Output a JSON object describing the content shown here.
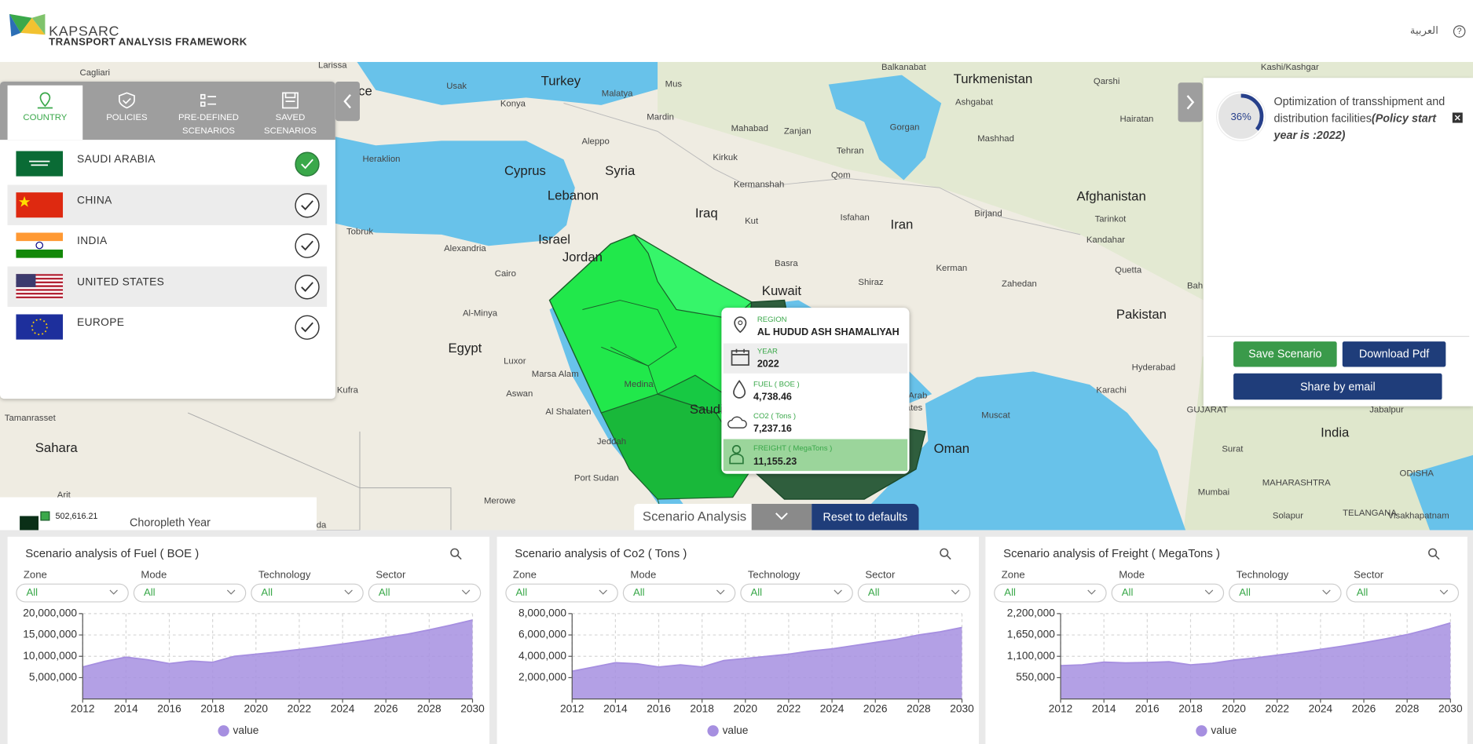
{
  "header": {
    "brand": "KAPSARC",
    "subtitle": "TRANSPORT ANALYSIS FRAMEWORK",
    "language": "العربية",
    "help": "?"
  },
  "tabs": [
    [
      "COUNTRY"
    ],
    [
      "POLICIES"
    ],
    [
      "PRE-DEFINED",
      "SCENARIOS"
    ],
    [
      "SAVED",
      "SCENARIOS"
    ]
  ],
  "countries": [
    {
      "name": "SAUDI ARABIA",
      "selected": true
    },
    {
      "name": "CHINA",
      "selected": false
    },
    {
      "name": "INDIA",
      "selected": false
    },
    {
      "name": "UNITED STATES",
      "selected": false
    },
    {
      "name": "EUROPE",
      "selected": false
    }
  ],
  "tooltip": {
    "region_label": "REGION",
    "region": "AL HUDUD ASH SHAMALIYAH",
    "year_label": "YEAR",
    "year": "2022",
    "fuel_label": "FUEL ( BOE )",
    "fuel": "4,738.46",
    "co2_label": "CO2 ( Tons )",
    "co2": "7,237.16",
    "freight_label": "FREIGHT ( MegaTons )",
    "freight": "11,155.23"
  },
  "right_panel": {
    "progress": {
      "value": 36,
      "label": "36%"
    },
    "policy": "Optimization of transshipment and distribution facilities",
    "policy_note": "(Policy start year is :2022)",
    "save": "Save Scenario",
    "download": "Download Pdf",
    "share": "Share by email"
  },
  "map_legend": {
    "max": "502,616.21",
    "title": "Choropleth Year"
  },
  "scenario_bar": {
    "label": "Scenario Analysis",
    "reset": "Reset to defaults"
  },
  "map": {
    "countries": [
      "Turkey",
      "Syria",
      "Iraq",
      "Iran",
      "Egypt",
      "Jordan",
      "Israel",
      "Lebanon",
      "Kuwait",
      "Oman",
      "Afghanistan",
      "Pakistan",
      "India",
      "Turkmenistan",
      "Sahara",
      "Cyprus",
      "Saudi",
      "ece"
    ],
    "cities": [
      "Cagliari",
      "Larissa",
      "Usak",
      "Konya",
      "Malatya",
      "Mus",
      "Mardin",
      "Aleppo",
      "Heraklion",
      "Tobruk",
      "Alexandria",
      "Cairo",
      "Al-Minya",
      "Luxor",
      "Aswan",
      "Marsa Alam",
      "Al Shalaten",
      "Kufra",
      "Tamanrasset",
      "Port Sudan",
      "Merowe",
      "Jeddah",
      "Medina",
      "Kirkuk",
      "Kermanshah",
      "Kut",
      "Basra",
      "Mahabad",
      "Zanjan",
      "Tehran",
      "Qom",
      "Isfahan",
      "Shiraz",
      "Gorgan",
      "Ashgabat",
      "Mashhad",
      "Birjand",
      "Kerman",
      "Zahedan",
      "Kandahar",
      "Quetta",
      "Tarinkot",
      "Qarshi",
      "Hairatan",
      "Kashi/Kashgar",
      "Balkanabat",
      "Muscat",
      "Karachi",
      "Hyderabad",
      "Surat",
      "Mumbai",
      "Jabalpur",
      "GUJARAT",
      "MAHARASHTRA",
      "TELANGANA",
      "ODISHA",
      "Solapur",
      "Visakhapatnam",
      "Arab",
      "ates",
      "Bah",
      "Arit",
      "ida"
    ]
  },
  "chart_data": [
    {
      "type": "area",
      "title": "Scenario analysis of Fuel ( BOE )",
      "filters": [
        {
          "label": "Zone",
          "value": "All"
        },
        {
          "label": "Mode",
          "value": "All"
        },
        {
          "label": "Technology",
          "value": "All"
        },
        {
          "label": "Sector",
          "value": "All"
        }
      ],
      "x": [
        2012,
        2013,
        2014,
        2015,
        2016,
        2017,
        2018,
        2019,
        2020,
        2021,
        2022,
        2023,
        2024,
        2025,
        2026,
        2027,
        2028,
        2029,
        2030
      ],
      "series": [
        {
          "name": "value",
          "color": "#a68fe0",
          "values": [
            7500000,
            8800000,
            9800000,
            9200000,
            8300000,
            8900000,
            8600000,
            10000000,
            10500000,
            11000000,
            11600000,
            12200000,
            12900000,
            13600000,
            14400000,
            15200000,
            16200000,
            17300000,
            18500000
          ]
        }
      ],
      "xlim": [
        2012,
        2030
      ],
      "xticks": [
        2012,
        2014,
        2016,
        2018,
        2020,
        2022,
        2024,
        2026,
        2028,
        2030
      ],
      "ylim": [
        0,
        20000000
      ],
      "yticks": [
        {
          "value": 5000000,
          "label": "5,000,000"
        },
        {
          "value": 10000000,
          "label": "10,000,000"
        },
        {
          "value": 15000000,
          "label": "15,000,000"
        },
        {
          "value": 20000000,
          "label": "20,000,000"
        }
      ],
      "grid": true
    },
    {
      "type": "area",
      "title": "Scenario analysis of Co2 ( Tons )",
      "filters": [
        {
          "label": "Zone",
          "value": "All"
        },
        {
          "label": "Mode",
          "value": "All"
        },
        {
          "label": "Technology",
          "value": "All"
        },
        {
          "label": "Sector",
          "value": "All"
        }
      ],
      "x": [
        2012,
        2013,
        2014,
        2015,
        2016,
        2017,
        2018,
        2019,
        2020,
        2021,
        2022,
        2023,
        2024,
        2025,
        2026,
        2027,
        2028,
        2029,
        2030
      ],
      "series": [
        {
          "name": "value",
          "color": "#a68fe0",
          "values": [
            2600000,
            3000000,
            3400000,
            3300000,
            3000000,
            3200000,
            3000000,
            3600000,
            3800000,
            4000000,
            4200000,
            4500000,
            4700000,
            5000000,
            5300000,
            5600000,
            6000000,
            6300000,
            6700000
          ]
        }
      ],
      "xlim": [
        2012,
        2030
      ],
      "xticks": [
        2012,
        2014,
        2016,
        2018,
        2020,
        2022,
        2024,
        2026,
        2028,
        2030
      ],
      "ylim": [
        0,
        8000000
      ],
      "yticks": [
        {
          "value": 2000000,
          "label": "2,000,000"
        },
        {
          "value": 4000000,
          "label": "4,000,000"
        },
        {
          "value": 6000000,
          "label": "6,000,000"
        },
        {
          "value": 8000000,
          "label": "8,000,000"
        }
      ],
      "grid": true
    },
    {
      "type": "area",
      "title": "Scenario analysis of Freight ( MegaTons )",
      "filters": [
        {
          "label": "Zone",
          "value": "All"
        },
        {
          "label": "Mode",
          "value": "All"
        },
        {
          "label": "Technology",
          "value": "All"
        },
        {
          "label": "Sector",
          "value": "All"
        }
      ],
      "x": [
        2012,
        2013,
        2014,
        2015,
        2016,
        2017,
        2018,
        2019,
        2020,
        2021,
        2022,
        2023,
        2024,
        2025,
        2026,
        2027,
        2028,
        2029,
        2030
      ],
      "series": [
        {
          "name": "value",
          "color": "#a68fe0",
          "values": [
            860000,
            880000,
            950000,
            930000,
            940000,
            960000,
            880000,
            920000,
            1000000,
            1060000,
            1130000,
            1200000,
            1280000,
            1360000,
            1450000,
            1550000,
            1660000,
            1800000,
            1960000
          ]
        }
      ],
      "xlim": [
        2012,
        2030
      ],
      "xticks": [
        2012,
        2014,
        2016,
        2018,
        2020,
        2022,
        2024,
        2026,
        2028,
        2030
      ],
      "ylim": [
        0,
        2200000
      ],
      "yticks": [
        {
          "value": 550000,
          "label": "550,000"
        },
        {
          "value": 1100000,
          "label": "1,100,000"
        },
        {
          "value": 1650000,
          "label": "1,650,000"
        },
        {
          "value": 2200000,
          "label": "2,200,000"
        }
      ],
      "grid": true
    }
  ]
}
